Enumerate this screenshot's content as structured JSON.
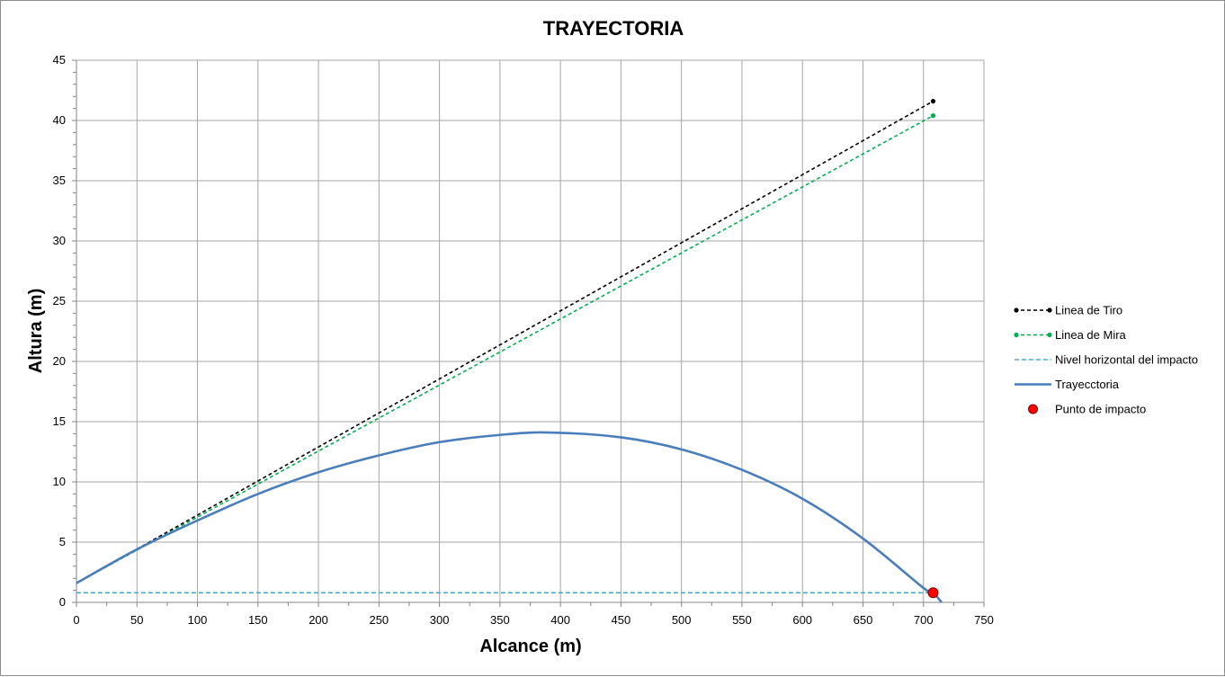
{
  "chart_data": {
    "type": "line",
    "title": "TRAYECTORIA",
    "xlabel": "Alcance (m)",
    "ylabel": "Altura (m)",
    "xlim": [
      0,
      750
    ],
    "ylim": [
      0,
      45
    ],
    "x_ticks": [
      0,
      50,
      100,
      150,
      200,
      250,
      300,
      350,
      400,
      450,
      500,
      550,
      600,
      650,
      700,
      750
    ],
    "y_ticks": [
      0,
      5,
      10,
      15,
      20,
      25,
      30,
      35,
      40,
      45
    ],
    "grid": true,
    "legend_position": "right",
    "series": [
      {
        "name": "Linea de Tiro",
        "style": "dashed-with-end-markers",
        "color": "#000000",
        "x": [
          0,
          708
        ],
        "y": [
          1.6,
          41.6
        ]
      },
      {
        "name": "Linea de Mira",
        "style": "dashed-with-end-markers",
        "color": "#00b050",
        "x": [
          0,
          708
        ],
        "y": [
          1.6,
          40.4
        ]
      },
      {
        "name": "Nivel horizontal del impacto",
        "style": "dashed",
        "color": "#4bacc6",
        "x": [
          0,
          708
        ],
        "y": [
          0.8,
          0.8
        ]
      },
      {
        "name": "Trayecctoria",
        "style": "solid",
        "color": "#4a7ebb",
        "x": [
          0,
          50,
          100,
          150,
          200,
          250,
          300,
          350,
          390,
          450,
          500,
          550,
          600,
          650,
          700,
          708,
          715
        ],
        "y": [
          1.6,
          4.4,
          6.8,
          9.0,
          10.8,
          12.2,
          13.3,
          13.9,
          14.1,
          13.7,
          12.7,
          11.0,
          8.6,
          5.3,
          1.2,
          0.8,
          0.0
        ]
      },
      {
        "name": "Punto de impacto",
        "style": "marker",
        "color": "#ff0000",
        "x": [
          708
        ],
        "y": [
          0.8
        ]
      }
    ]
  }
}
